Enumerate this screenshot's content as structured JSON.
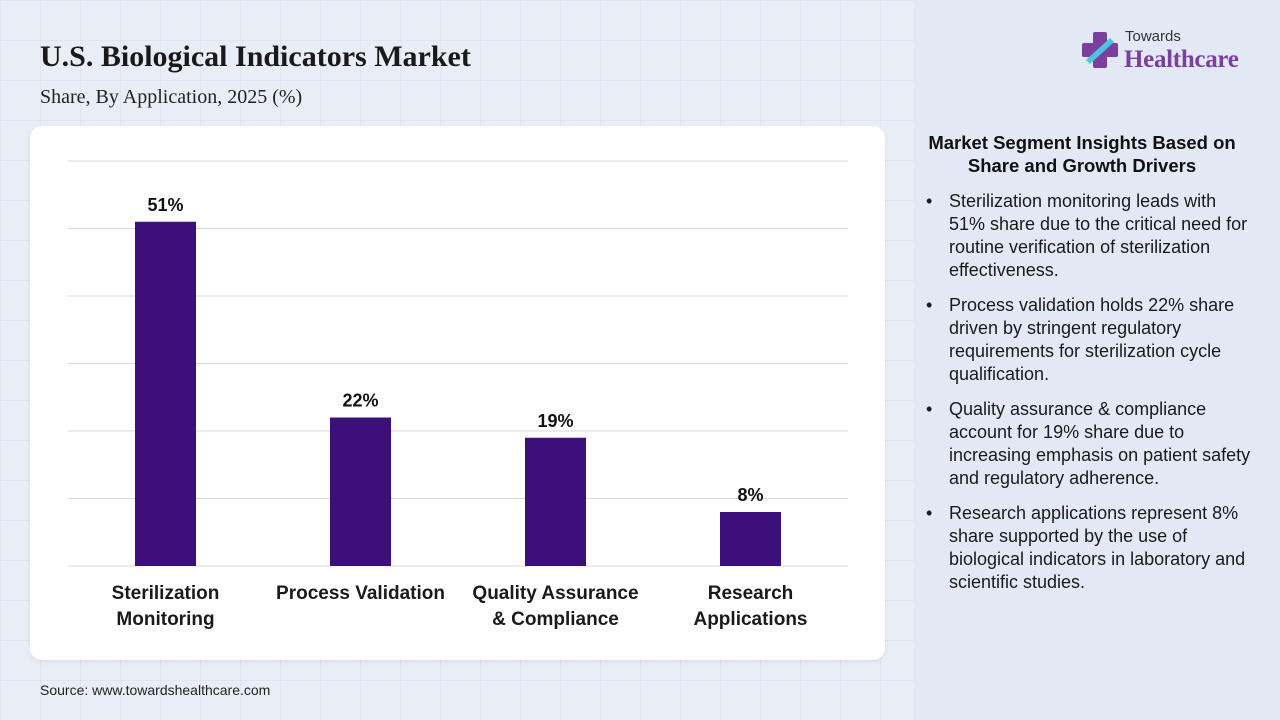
{
  "header": {
    "title": "U.S. Biological Indicators Market",
    "subtitle": "Share, By Application, 2025 (%)"
  },
  "brand": {
    "top": "Towards",
    "bottom": "Healthcare",
    "logo_icon": "plus-cross-icon",
    "color_primary": "#7b3fa0",
    "color_secondary": "#4fc3e0"
  },
  "chart_data": {
    "type": "bar",
    "categories": [
      [
        "Sterilization",
        "Monitoring"
      ],
      [
        "Process Validation"
      ],
      [
        "Quality Assurance",
        "& Compliance"
      ],
      [
        "Research",
        "Applications"
      ]
    ],
    "values": [
      51,
      22,
      19,
      8
    ],
    "data_labels": [
      "51%",
      "22%",
      "19%",
      "8%"
    ],
    "ylim": [
      0,
      60
    ],
    "grid": true,
    "bar_color": "#3d0f7a"
  },
  "insights": {
    "title": "Market Segment Insights Based on Share and Growth Drivers",
    "items": [
      "Sterilization monitoring leads with 51% share due to the critical need for routine verification of sterilization effectiveness.",
      "Process validation holds 22% share driven by stringent regulatory requirements for sterilization cycle qualification.",
      "Quality assurance & compliance account for 19% share due to increasing emphasis on patient safety and regulatory adherence.",
      "Research applications represent 8% share supported by the use of biological indicators in laboratory and scientific studies."
    ]
  },
  "footer": {
    "source": "Source: www.towardshealthcare.com"
  }
}
